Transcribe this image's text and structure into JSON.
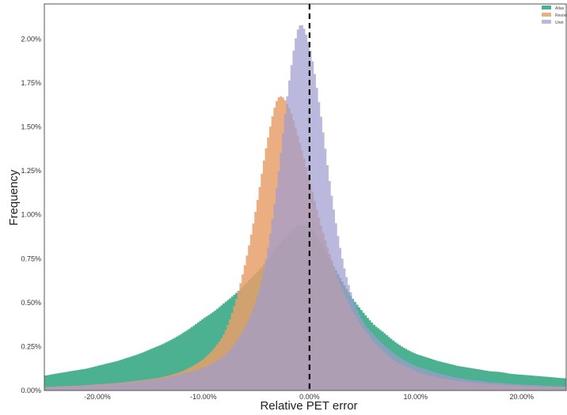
{
  "chart_data": {
    "type": "histogram",
    "xlabel": "Relative PET error",
    "ylabel": "Frequency",
    "xlim": [
      -25.0,
      24.2
    ],
    "ylim": [
      0.0,
      2.2
    ],
    "x_unit": "%",
    "y_unit": "%",
    "x_ticks": [
      "-20.00%",
      "-10.00%",
      "0.00%",
      "10.00%",
      "20.00%"
    ],
    "x_tick_values": [
      -20,
      -10,
      0,
      10,
      20
    ],
    "y_ticks": [
      "0.00%",
      "0.25%",
      "0.50%",
      "0.75%",
      "1.00%",
      "1.25%",
      "1.50%",
      "1.75%",
      "2.00%"
    ],
    "y_tick_values": [
      0,
      0.25,
      0.5,
      0.75,
      1.0,
      1.25,
      1.5,
      1.75,
      2.0
    ],
    "reference_line": {
      "x": 0,
      "style": "dashed",
      "color": "#000000"
    },
    "grid": false,
    "legend_position": "top-right",
    "series": [
      {
        "name": "Atlas",
        "color": "#2ca37d",
        "opacity": 0.85,
        "x": [
          -25,
          -24,
          -23,
          -22,
          -21,
          -20,
          -19,
          -18,
          -17,
          -16,
          -15,
          -14,
          -13,
          -12,
          -11,
          -10,
          -9,
          -8,
          -7,
          -6,
          -5,
          -4,
          -3,
          -2,
          -1,
          0,
          1,
          2,
          3,
          4,
          5,
          6,
          7,
          8,
          9,
          10,
          11,
          12,
          13,
          14,
          15,
          16,
          17,
          18,
          19,
          20,
          21,
          22,
          23,
          24
        ],
        "y": [
          0.085,
          0.095,
          0.105,
          0.115,
          0.125,
          0.14,
          0.155,
          0.17,
          0.19,
          0.21,
          0.235,
          0.26,
          0.29,
          0.325,
          0.365,
          0.41,
          0.45,
          0.5,
          0.55,
          0.61,
          0.67,
          0.74,
          0.82,
          0.89,
          0.94,
          0.93,
          0.85,
          0.74,
          0.63,
          0.53,
          0.45,
          0.38,
          0.33,
          0.28,
          0.24,
          0.21,
          0.19,
          0.17,
          0.155,
          0.14,
          0.13,
          0.12,
          0.11,
          0.105,
          0.095,
          0.09,
          0.085,
          0.08,
          0.075,
          0.07
        ]
      },
      {
        "name": "Resnet",
        "color": "#e8a06b",
        "opacity": 0.85,
        "x": [
          -25,
          -24,
          -23,
          -22,
          -21,
          -20,
          -19,
          -18,
          -17,
          -16,
          -15,
          -14,
          -13,
          -12,
          -11,
          -10,
          -9,
          -8,
          -7,
          -6,
          -5,
          -4,
          -3,
          -2,
          -1,
          0,
          1,
          2,
          3,
          4,
          5,
          6,
          7,
          8,
          9,
          10,
          11,
          12,
          13,
          14,
          15,
          16,
          17,
          18,
          19,
          20,
          21,
          22,
          23,
          24
        ],
        "y": [
          0.02,
          0.022,
          0.025,
          0.028,
          0.031,
          0.035,
          0.039,
          0.044,
          0.05,
          0.057,
          0.065,
          0.075,
          0.09,
          0.11,
          0.14,
          0.18,
          0.24,
          0.33,
          0.5,
          0.74,
          1.05,
          1.41,
          1.66,
          1.62,
          1.43,
          1.2,
          0.96,
          0.76,
          0.59,
          0.46,
          0.36,
          0.28,
          0.22,
          0.17,
          0.14,
          0.11,
          0.09,
          0.075,
          0.065,
          0.055,
          0.048,
          0.042,
          0.037,
          0.033,
          0.03,
          0.027,
          0.025,
          0.023,
          0.021,
          0.02
        ]
      },
      {
        "name": "Unet",
        "color": "#9f9ccf",
        "opacity": 0.72,
        "x": [
          -25,
          -24,
          -23,
          -22,
          -21,
          -20,
          -19,
          -18,
          -17,
          -16,
          -15,
          -14,
          -13,
          -12,
          -11,
          -10,
          -9,
          -8,
          -7,
          -6,
          -5,
          -4,
          -3,
          -2,
          -1,
          0,
          1,
          2,
          3,
          4,
          5,
          6,
          7,
          8,
          9,
          10,
          11,
          12,
          13,
          14,
          15,
          16,
          17,
          18,
          19,
          20,
          21,
          22,
          23,
          24
        ],
        "y": [
          0.02,
          0.022,
          0.024,
          0.027,
          0.03,
          0.033,
          0.037,
          0.041,
          0.046,
          0.052,
          0.06,
          0.07,
          0.08,
          0.095,
          0.11,
          0.13,
          0.16,
          0.2,
          0.27,
          0.37,
          0.52,
          0.78,
          1.2,
          1.72,
          2.07,
          1.96,
          1.6,
          1.15,
          0.78,
          0.54,
          0.4,
          0.32,
          0.26,
          0.21,
          0.17,
          0.14,
          0.12,
          0.1,
          0.085,
          0.072,
          0.062,
          0.055,
          0.048,
          0.043,
          0.038,
          0.034,
          0.031,
          0.028,
          0.025,
          0.023
        ]
      }
    ]
  }
}
